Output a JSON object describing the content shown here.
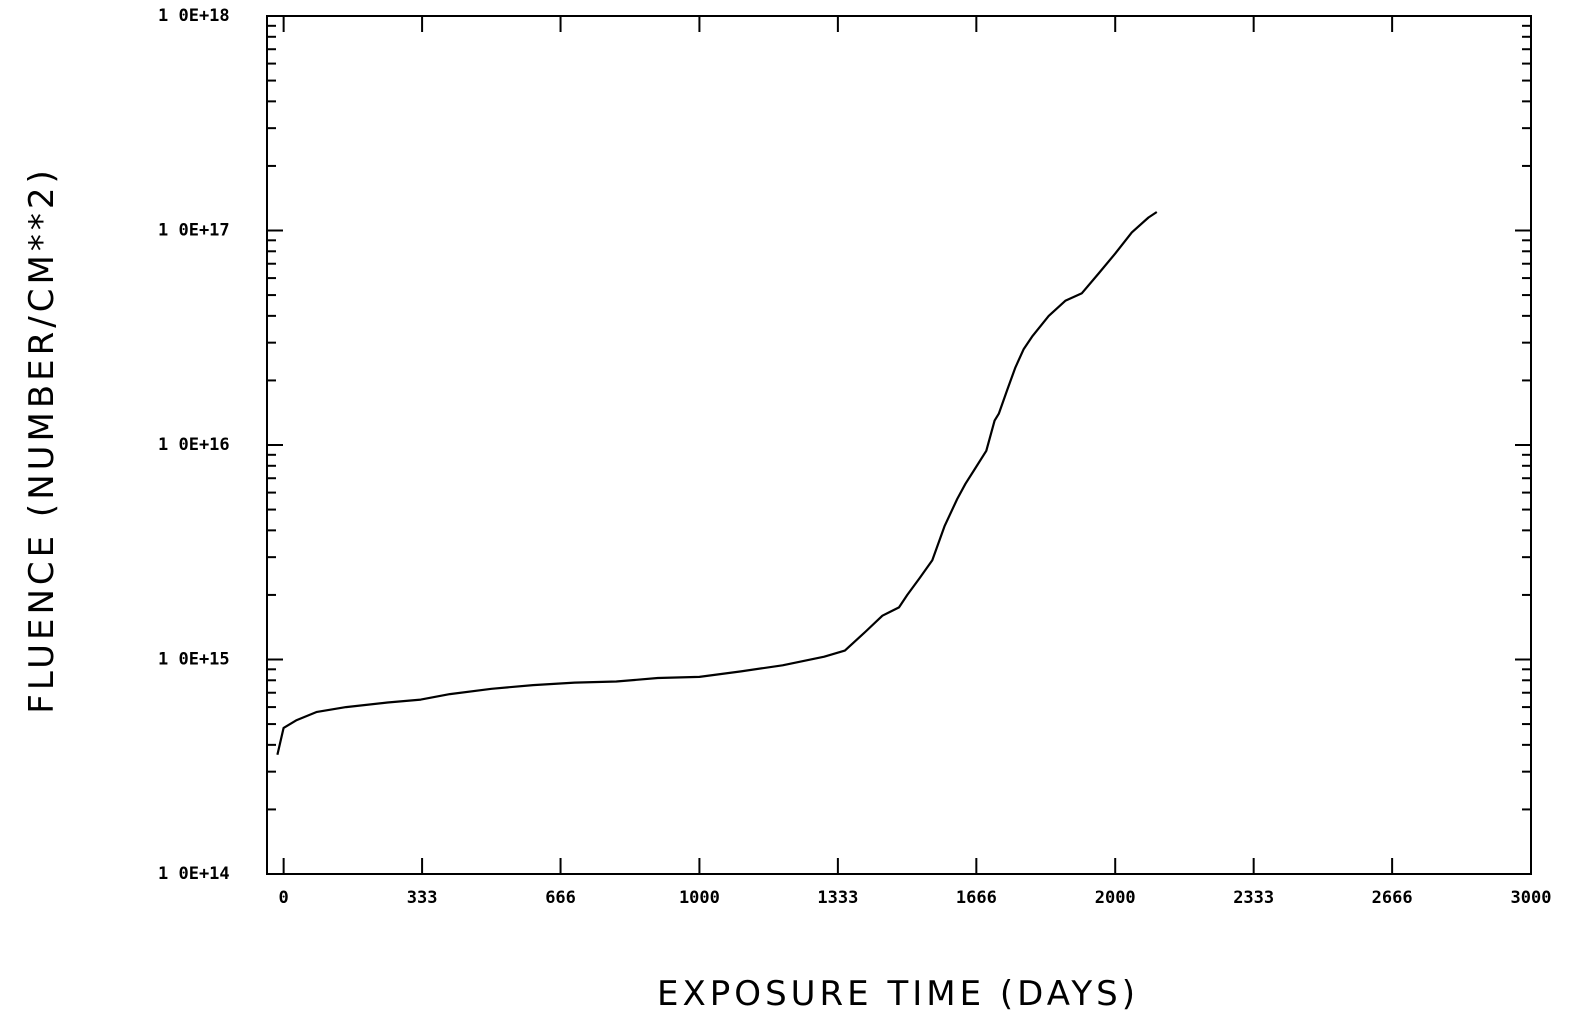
{
  "chart_data": {
    "type": "line",
    "xlabel": "EXPOSURE TIME (DAYS)",
    "ylabel": "FLUENCE (NUMBER/CM**2)",
    "xlim": [
      -40,
      3000
    ],
    "ylim": [
      100000000000000.0,
      1e+18
    ],
    "yscale": "log",
    "grid": false,
    "x_ticks": [
      0,
      333,
      666,
      1000,
      1333,
      1666,
      2000,
      2333,
      2666,
      3000
    ],
    "x_tick_labels": [
      "0",
      "333",
      "666",
      "1000",
      "1333",
      "1666",
      "2000",
      "2333",
      "2666",
      "3000"
    ],
    "y_ticks": [
      100000000000000.0,
      1000000000000000.0,
      1e+16,
      1e+17,
      1e+18
    ],
    "y_tick_labels": [
      "1 0E+14",
      "1 0E+15",
      "1 0E+16",
      "1 0E+17",
      "1 0E+18"
    ],
    "series": [
      {
        "x": [
          -15,
          0,
          30,
          80,
          150,
          250,
          330,
          400,
          500,
          600,
          700,
          800,
          900,
          1000,
          1100,
          1200,
          1300,
          1350,
          1400,
          1440,
          1480,
          1500,
          1530,
          1560,
          1590,
          1620,
          1640,
          1660,
          1690,
          1710,
          1720,
          1740,
          1760,
          1780,
          1800,
          1840,
          1880,
          1920,
          1960,
          2000,
          2040,
          2080,
          2100
        ],
        "y": [
          360000000000000.0,
          480000000000000.0,
          520000000000000.0,
          570000000000000.0,
          600000000000000.0,
          630000000000000.0,
          650000000000000.0,
          690000000000000.0,
          730000000000000.0,
          760000000000000.0,
          780000000000000.0,
          790000000000000.0,
          820000000000000.0,
          830000000000000.0,
          880000000000000.0,
          940000000000000.0,
          1030000000000000.0,
          1100000000000000.0,
          1350000000000000.0,
          1600000000000000.0,
          1750000000000000.0,
          2000000000000000.0,
          2400000000000000.0,
          2900000000000000.0,
          4200000000000000.0,
          5600000000000000.0,
          6600000000000000.0,
          7600000000000000.0,
          9400000000000000.0,
          1.3e+16,
          1.4e+16,
          1.8e+16,
          2.3e+16,
          2.8e+16,
          3.2e+16,
          4e+16,
          4.7e+16,
          5.1e+16,
          6.3e+16,
          7.8e+16,
          9.8e+16,
          1.15e+17,
          1.22e+17
        ]
      }
    ]
  }
}
